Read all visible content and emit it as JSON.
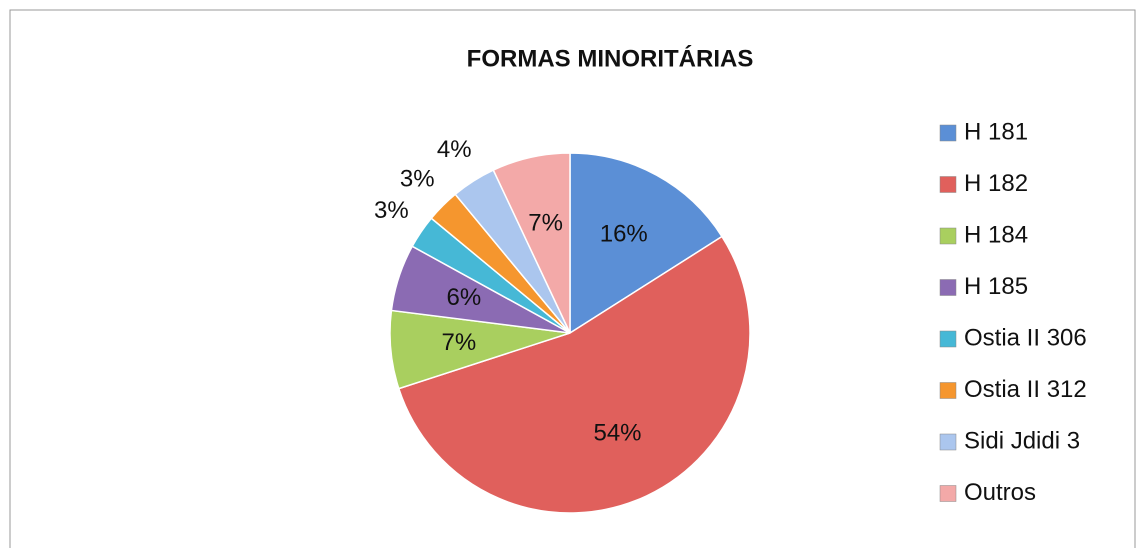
{
  "chart_data": {
    "type": "pie",
    "title": "FORMAS MINORITÁRIAS",
    "categories": [
      "H 181",
      "H 182",
      "H 184",
      "H 185",
      "Ostia II 306",
      "Ostia II 312",
      "Sidi Jdidi 3",
      "Outros"
    ],
    "values": [
      16,
      54,
      7,
      6,
      3,
      3,
      4,
      7
    ],
    "value_labels": [
      "16%",
      "54%",
      "7%",
      "6%",
      "3%",
      "3%",
      "4%",
      "7%"
    ],
    "colors": [
      "#5b8fd6",
      "#e0605c",
      "#a9cf5f",
      "#8b6bb3",
      "#46b8d6",
      "#f5962e",
      "#abc6ee",
      "#f3a9a8"
    ],
    "legend": "right"
  }
}
